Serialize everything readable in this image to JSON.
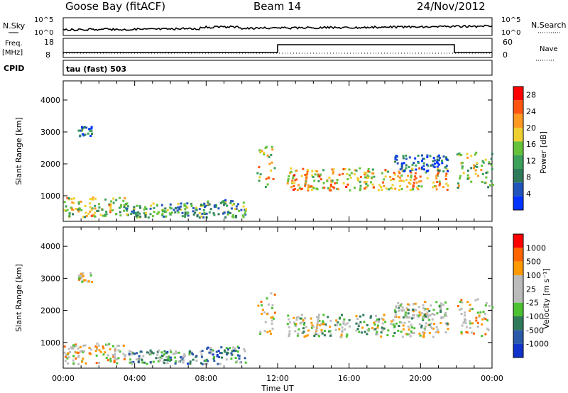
{
  "header": {
    "station": "Goose Bay (fitACF)",
    "beam": "Beam 14",
    "date": "24/Nov/2012"
  },
  "top_panels": {
    "nsky_label": "N.Sky",
    "nsky_tick_high": "10^5",
    "nsky_tick_low": "10^0",
    "nsearch_label": "N.Search",
    "freq_label_1": "Freq.",
    "freq_label_2": "[MHz]",
    "freq_tick_high": "18",
    "freq_tick_low": "8",
    "nave_label": "Nave",
    "nave_tick_high": "60",
    "nave_tick_low": "0",
    "cpid_label": "CPID",
    "cpid_value": "tau (fast) 503"
  },
  "colors": {
    "power": [
      "#0033ff",
      "#2255bb",
      "#2f7a5a",
      "#3aa05a",
      "#66c23a",
      "#f0d030",
      "#ff9922",
      "#ff5511",
      "#ff0000"
    ],
    "velocity": [
      "#1133cc",
      "#2a5aa8",
      "#2f7a5a",
      "#4cc233",
      "#bbbbbb",
      "#bbbbbb",
      "#ff9900",
      "#ff6600",
      "#ff0000"
    ]
  },
  "chart_data": [
    {
      "type": "heatmap",
      "ylabel": "Slant Range [km]",
      "xlabel": "Time UT",
      "x_ticks": [
        "00:00",
        "04:00",
        "08:00",
        "12:00",
        "16:00",
        "20:00",
        "00:00"
      ],
      "y_ticks": [
        1000,
        2000,
        3000,
        4000
      ],
      "ylim": [
        200,
        4600
      ],
      "colorbar": {
        "label": "Power [dB]",
        "ticks": [
          4,
          8,
          12,
          16,
          20,
          24,
          28
        ],
        "range": [
          0,
          30
        ]
      },
      "regions": [
        {
          "t0": 0.0,
          "t1": 3.5,
          "r0": 350,
          "r1": 1000,
          "level": 0.55
        },
        {
          "t0": 3.5,
          "t1": 7.8,
          "r0": 350,
          "r1": 800,
          "level": 0.4
        },
        {
          "t0": 7.8,
          "t1": 10.2,
          "r0": 350,
          "r1": 900,
          "level": 0.35
        },
        {
          "t0": 0.8,
          "t1": 1.6,
          "r0": 2900,
          "r1": 3200,
          "level": 0.2
        },
        {
          "t0": 10.8,
          "t1": 11.8,
          "r0": 1300,
          "r1": 2600,
          "level": 0.6
        },
        {
          "t0": 12.5,
          "t1": 21.5,
          "r0": 1200,
          "r1": 1900,
          "level": 0.65
        },
        {
          "t0": 18.5,
          "t1": 21.5,
          "r0": 1800,
          "r1": 2300,
          "level": 0.2
        },
        {
          "t0": 22.0,
          "t1": 24.0,
          "r0": 1200,
          "r1": 2400,
          "level": 0.5
        }
      ]
    },
    {
      "type": "heatmap",
      "ylabel": "Slant Range [km]",
      "xlabel": "Time UT",
      "x_ticks": [
        "00:00",
        "04:00",
        "08:00",
        "12:00",
        "16:00",
        "20:00",
        "00:00"
      ],
      "y_ticks": [
        1000,
        2000,
        3000,
        4000
      ],
      "ylim": [
        200,
        4600
      ],
      "colorbar": {
        "label": "Velocity [m s⁻¹]",
        "ticks": [
          1000,
          500,
          100,
          25,
          -25,
          -100,
          -500,
          -1000
        ],
        "range": [
          -1000,
          1000
        ]
      },
      "regions": [
        {
          "t0": 0.0,
          "t1": 3.5,
          "r0": 350,
          "r1": 1000,
          "level": 0.6
        },
        {
          "t0": 3.5,
          "t1": 7.8,
          "r0": 350,
          "r1": 800,
          "level": 0.35
        },
        {
          "t0": 7.8,
          "t1": 10.2,
          "r0": 350,
          "r1": 900,
          "level": 0.3
        },
        {
          "t0": 0.8,
          "t1": 1.6,
          "r0": 2900,
          "r1": 3200,
          "level": 0.6
        },
        {
          "t0": 10.8,
          "t1": 11.8,
          "r0": 1300,
          "r1": 2600,
          "level": 0.55
        },
        {
          "t0": 12.5,
          "t1": 21.5,
          "r0": 1200,
          "r1": 1900,
          "level": 0.5
        },
        {
          "t0": 18.5,
          "t1": 21.5,
          "r0": 1800,
          "r1": 2300,
          "level": 0.5
        },
        {
          "t0": 22.0,
          "t1": 24.0,
          "r0": 1200,
          "r1": 2400,
          "level": 0.6
        }
      ]
    }
  ]
}
